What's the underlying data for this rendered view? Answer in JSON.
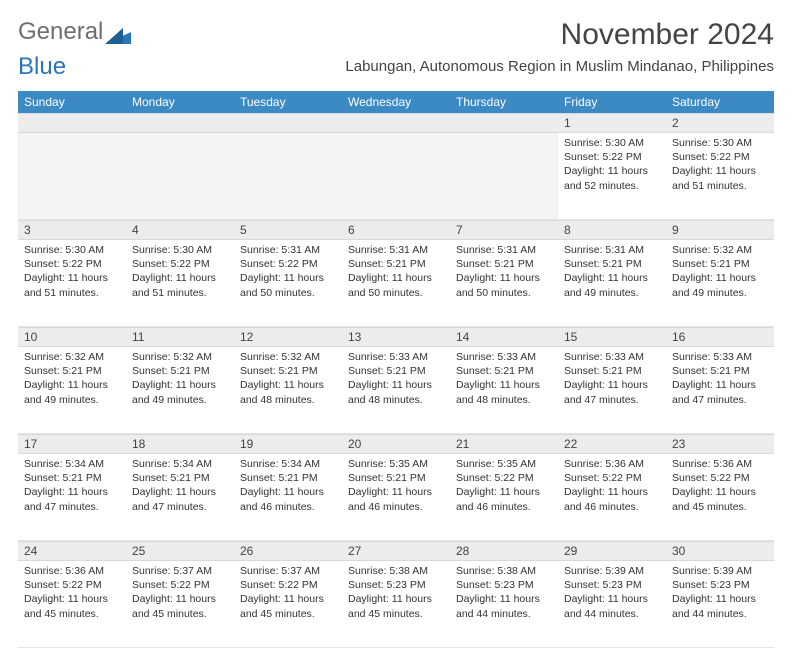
{
  "logo": {
    "text1": "General",
    "text2": "Blue"
  },
  "title": "November 2024",
  "location": "Labungan, Autonomous Region in Muslim Mindanao, Philippines",
  "colors": {
    "header_bg": "#3b8ac4",
    "header_text": "#ffffff",
    "daynum_bg": "#ececec",
    "page_bg": "#ffffff",
    "text": "#333333",
    "logo_gray": "#6e6e6e",
    "logo_blue": "#2a76b8"
  },
  "weekdays": [
    "Sunday",
    "Monday",
    "Tuesday",
    "Wednesday",
    "Thursday",
    "Friday",
    "Saturday"
  ],
  "weeks": [
    [
      {
        "empty": true
      },
      {
        "empty": true
      },
      {
        "empty": true
      },
      {
        "empty": true
      },
      {
        "empty": true
      },
      {
        "day": "1",
        "sunrise": "Sunrise: 5:30 AM",
        "sunset": "Sunset: 5:22 PM",
        "daylight": "Daylight: 11 hours and 52 minutes."
      },
      {
        "day": "2",
        "sunrise": "Sunrise: 5:30 AM",
        "sunset": "Sunset: 5:22 PM",
        "daylight": "Daylight: 11 hours and 51 minutes."
      }
    ],
    [
      {
        "day": "3",
        "sunrise": "Sunrise: 5:30 AM",
        "sunset": "Sunset: 5:22 PM",
        "daylight": "Daylight: 11 hours and 51 minutes."
      },
      {
        "day": "4",
        "sunrise": "Sunrise: 5:30 AM",
        "sunset": "Sunset: 5:22 PM",
        "daylight": "Daylight: 11 hours and 51 minutes."
      },
      {
        "day": "5",
        "sunrise": "Sunrise: 5:31 AM",
        "sunset": "Sunset: 5:22 PM",
        "daylight": "Daylight: 11 hours and 50 minutes."
      },
      {
        "day": "6",
        "sunrise": "Sunrise: 5:31 AM",
        "sunset": "Sunset: 5:21 PM",
        "daylight": "Daylight: 11 hours and 50 minutes."
      },
      {
        "day": "7",
        "sunrise": "Sunrise: 5:31 AM",
        "sunset": "Sunset: 5:21 PM",
        "daylight": "Daylight: 11 hours and 50 minutes."
      },
      {
        "day": "8",
        "sunrise": "Sunrise: 5:31 AM",
        "sunset": "Sunset: 5:21 PM",
        "daylight": "Daylight: 11 hours and 49 minutes."
      },
      {
        "day": "9",
        "sunrise": "Sunrise: 5:32 AM",
        "sunset": "Sunset: 5:21 PM",
        "daylight": "Daylight: 11 hours and 49 minutes."
      }
    ],
    [
      {
        "day": "10",
        "sunrise": "Sunrise: 5:32 AM",
        "sunset": "Sunset: 5:21 PM",
        "daylight": "Daylight: 11 hours and 49 minutes."
      },
      {
        "day": "11",
        "sunrise": "Sunrise: 5:32 AM",
        "sunset": "Sunset: 5:21 PM",
        "daylight": "Daylight: 11 hours and 49 minutes."
      },
      {
        "day": "12",
        "sunrise": "Sunrise: 5:32 AM",
        "sunset": "Sunset: 5:21 PM",
        "daylight": "Daylight: 11 hours and 48 minutes."
      },
      {
        "day": "13",
        "sunrise": "Sunrise: 5:33 AM",
        "sunset": "Sunset: 5:21 PM",
        "daylight": "Daylight: 11 hours and 48 minutes."
      },
      {
        "day": "14",
        "sunrise": "Sunrise: 5:33 AM",
        "sunset": "Sunset: 5:21 PM",
        "daylight": "Daylight: 11 hours and 48 minutes."
      },
      {
        "day": "15",
        "sunrise": "Sunrise: 5:33 AM",
        "sunset": "Sunset: 5:21 PM",
        "daylight": "Daylight: 11 hours and 47 minutes."
      },
      {
        "day": "16",
        "sunrise": "Sunrise: 5:33 AM",
        "sunset": "Sunset: 5:21 PM",
        "daylight": "Daylight: 11 hours and 47 minutes."
      }
    ],
    [
      {
        "day": "17",
        "sunrise": "Sunrise: 5:34 AM",
        "sunset": "Sunset: 5:21 PM",
        "daylight": "Daylight: 11 hours and 47 minutes."
      },
      {
        "day": "18",
        "sunrise": "Sunrise: 5:34 AM",
        "sunset": "Sunset: 5:21 PM",
        "daylight": "Daylight: 11 hours and 47 minutes."
      },
      {
        "day": "19",
        "sunrise": "Sunrise: 5:34 AM",
        "sunset": "Sunset: 5:21 PM",
        "daylight": "Daylight: 11 hours and 46 minutes."
      },
      {
        "day": "20",
        "sunrise": "Sunrise: 5:35 AM",
        "sunset": "Sunset: 5:21 PM",
        "daylight": "Daylight: 11 hours and 46 minutes."
      },
      {
        "day": "21",
        "sunrise": "Sunrise: 5:35 AM",
        "sunset": "Sunset: 5:22 PM",
        "daylight": "Daylight: 11 hours and 46 minutes."
      },
      {
        "day": "22",
        "sunrise": "Sunrise: 5:36 AM",
        "sunset": "Sunset: 5:22 PM",
        "daylight": "Daylight: 11 hours and 46 minutes."
      },
      {
        "day": "23",
        "sunrise": "Sunrise: 5:36 AM",
        "sunset": "Sunset: 5:22 PM",
        "daylight": "Daylight: 11 hours and 45 minutes."
      }
    ],
    [
      {
        "day": "24",
        "sunrise": "Sunrise: 5:36 AM",
        "sunset": "Sunset: 5:22 PM",
        "daylight": "Daylight: 11 hours and 45 minutes."
      },
      {
        "day": "25",
        "sunrise": "Sunrise: 5:37 AM",
        "sunset": "Sunset: 5:22 PM",
        "daylight": "Daylight: 11 hours and 45 minutes."
      },
      {
        "day": "26",
        "sunrise": "Sunrise: 5:37 AM",
        "sunset": "Sunset: 5:22 PM",
        "daylight": "Daylight: 11 hours and 45 minutes."
      },
      {
        "day": "27",
        "sunrise": "Sunrise: 5:38 AM",
        "sunset": "Sunset: 5:23 PM",
        "daylight": "Daylight: 11 hours and 45 minutes."
      },
      {
        "day": "28",
        "sunrise": "Sunrise: 5:38 AM",
        "sunset": "Sunset: 5:23 PM",
        "daylight": "Daylight: 11 hours and 44 minutes."
      },
      {
        "day": "29",
        "sunrise": "Sunrise: 5:39 AM",
        "sunset": "Sunset: 5:23 PM",
        "daylight": "Daylight: 11 hours and 44 minutes."
      },
      {
        "day": "30",
        "sunrise": "Sunrise: 5:39 AM",
        "sunset": "Sunset: 5:23 PM",
        "daylight": "Daylight: 11 hours and 44 minutes."
      }
    ]
  ]
}
